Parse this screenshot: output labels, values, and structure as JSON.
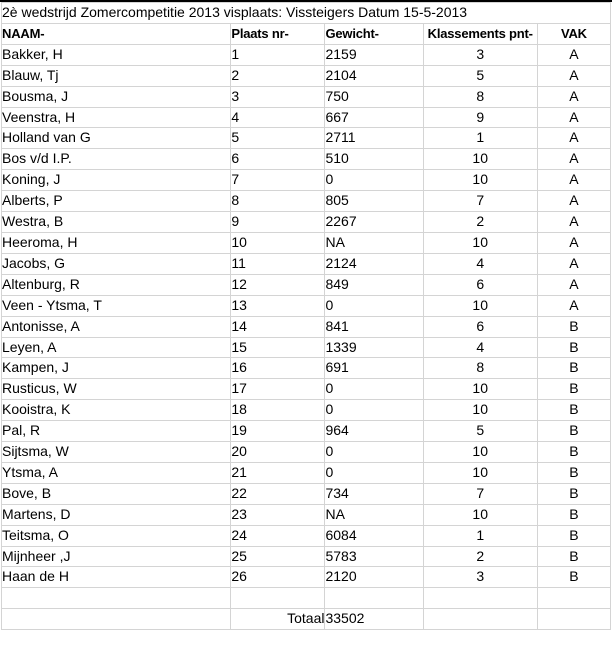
{
  "title": "2è wedstrijd Zomercompetitie 2013 visplaats: Vissteigers Datum 15-5-2013",
  "table": {
    "columns": [
      {
        "label": "NAAM-",
        "align": "left"
      },
      {
        "label": "Plaats nr-",
        "align": "left"
      },
      {
        "label": "Gewicht-",
        "align": "left"
      },
      {
        "label": "Klassements pnt-",
        "align": "center"
      },
      {
        "label": "VAK",
        "align": "center"
      }
    ],
    "rows": [
      [
        "Bakker, H",
        "1",
        "2159",
        "3",
        "A"
      ],
      [
        "Blauw, Tj",
        "2",
        "2104",
        "5",
        "A"
      ],
      [
        "Bousma, J",
        "3",
        "750",
        "8",
        "A"
      ],
      [
        "Veenstra, H",
        "4",
        "667",
        "9",
        "A"
      ],
      [
        "Holland van G",
        "5",
        "2711",
        "1",
        "A"
      ],
      [
        "Bos v/d I.P.",
        "6",
        "510",
        "10",
        "A"
      ],
      [
        "Koning, J",
        "7",
        "0",
        "10",
        "A"
      ],
      [
        "Alberts, P",
        "8",
        "805",
        "7",
        "A"
      ],
      [
        "Westra, B",
        "9",
        "2267",
        "2",
        "A"
      ],
      [
        "Heeroma, H",
        "10",
        "NA",
        "10",
        "A"
      ],
      [
        "Jacobs, G",
        "11",
        "2124",
        "4",
        "A"
      ],
      [
        "Altenburg, R",
        "12",
        "849",
        "6",
        "A"
      ],
      [
        "Veen - Ytsma, T",
        "13",
        "0",
        "10",
        "A"
      ],
      [
        "Antonisse, A",
        "14",
        "841",
        "6",
        "B"
      ],
      [
        "Leyen, A",
        "15",
        "1339",
        "4",
        "B"
      ],
      [
        "Kampen, J",
        "16",
        "691",
        "8",
        "B"
      ],
      [
        "Rusticus, W",
        "17",
        "0",
        "10",
        "B"
      ],
      [
        "Kooistra, K",
        "18",
        "0",
        "10",
        "B"
      ],
      [
        "Pal, R",
        "19",
        "964",
        "5",
        "B"
      ],
      [
        "Sijtsma, W",
        "20",
        "0",
        "10",
        "B"
      ],
      [
        "Ytsma, A",
        "21",
        "0",
        "10",
        "B"
      ],
      [
        "Bove, B",
        "22",
        "734",
        "7",
        "B"
      ],
      [
        "Martens, D",
        "23",
        "NA",
        "10",
        "B"
      ],
      [
        "Teitsma, O",
        "24",
        "6084",
        "1",
        "B"
      ],
      [
        "Mijnheer ,J",
        "25",
        "5783",
        "2",
        "B"
      ],
      [
        "Haan de H",
        "26",
        "2120",
        "3",
        "B"
      ]
    ],
    "footer": {
      "label": "Totaal",
      "total": "33502"
    }
  },
  "colors": {
    "gridline": "#d4d4d4",
    "top_border": "#000000",
    "text": "#000000",
    "background": "#ffffff"
  }
}
